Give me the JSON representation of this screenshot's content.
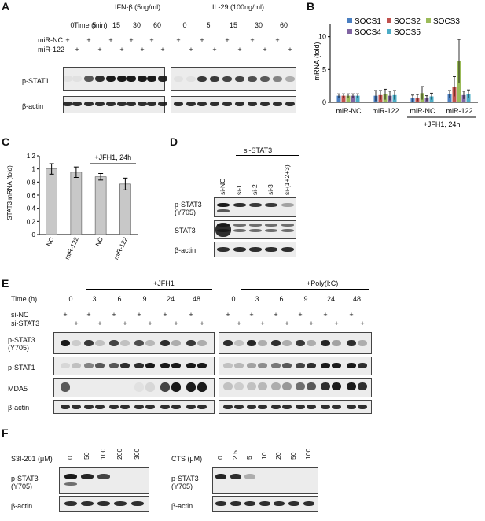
{
  "panels": {
    "A": "A",
    "B": "B",
    "C": "C",
    "D": "D",
    "E": "E",
    "F": "F"
  },
  "panelA": {
    "left_title": "IFN-β (5ng/ml)",
    "right_title": "IL-29 (100ng/ml)",
    "time_label": "Time (min)",
    "times": [
      "0",
      "5",
      "15",
      "30",
      "60"
    ],
    "row1": "miR-NC",
    "row2": "miR-122",
    "plus": "+",
    "blot1": "p-STAT1",
    "blot2": "β-actin"
  },
  "chart_data": [
    {
      "panel": "B",
      "type": "bar",
      "ylabel": "mRNA (fold)",
      "ylim": [
        0,
        12
      ],
      "yticks": [
        "0",
        "5",
        "10"
      ],
      "categories": [
        "miR-NC",
        "miR-122",
        "miR-NC",
        "miR-122"
      ],
      "group_note": "+JFH1, 24h",
      "series": [
        {
          "name": "SOCS1",
          "color": "#4a7fc1",
          "values": [
            1.0,
            1.0,
            0.6,
            1.2
          ],
          "errors": [
            0.3,
            0.8,
            0.5,
            0.6
          ]
        },
        {
          "name": "SOCS2",
          "color": "#c0504d",
          "values": [
            1.0,
            1.1,
            0.7,
            2.4
          ],
          "errors": [
            0.3,
            0.7,
            0.5,
            1.5
          ]
        },
        {
          "name": "SOCS3",
          "color": "#9bbb59",
          "values": [
            1.0,
            1.2,
            1.4,
            6.3
          ],
          "errors": [
            0.3,
            0.8,
            1.0,
            3.3
          ]
        },
        {
          "name": "SOCS4",
          "color": "#8064a2",
          "values": [
            1.0,
            1.0,
            0.6,
            1.1
          ],
          "errors": [
            0.3,
            0.7,
            0.4,
            0.6
          ]
        },
        {
          "name": "SOCS5",
          "color": "#4bacc6",
          "values": [
            1.0,
            1.1,
            0.9,
            1.3
          ],
          "errors": [
            0.3,
            0.7,
            0.5,
            0.6
          ]
        }
      ]
    },
    {
      "panel": "C",
      "type": "bar",
      "ylabel": "STAT3 mRNA (fold)",
      "ylim": [
        0,
        1.2
      ],
      "yticks": [
        "0",
        "0.2",
        "0.4",
        "0.6",
        "0.8",
        "1",
        "1.2"
      ],
      "categories": [
        "NC",
        "miR-122",
        "NC",
        "miR-122"
      ],
      "group_note": "+JFH1, 24h",
      "series": [
        {
          "color": "#c8c8c8",
          "values": [
            1.0,
            0.95,
            0.88,
            0.77
          ],
          "errors": [
            0.08,
            0.08,
            0.05,
            0.09
          ]
        }
      ]
    }
  ],
  "panelD": {
    "group": "si-STAT3",
    "lanes": [
      "si-NC",
      "si-1",
      "si-2",
      "si-3",
      "si-(1+2+3)"
    ],
    "blot1a": "p-STAT3",
    "blot1b": "(Y705)",
    "blot2": "STAT3",
    "blot3": "β-actin"
  },
  "panelE": {
    "left_title": "+JFH1",
    "right_title": "+Poly(I:C)",
    "time_label": "Time (h)",
    "times": [
      "0",
      "3",
      "6",
      "9",
      "24",
      "48"
    ],
    "row1": "si-NC",
    "row2": "si-STAT3",
    "plus": "+",
    "blot1a": "p-STAT3",
    "blot1b": "(Y705)",
    "blot2": "p-STAT1",
    "blot3": "MDA5",
    "blot4": "β-actin"
  },
  "panelF": {
    "left_label": "S3I-201 (μM)",
    "left_doses": [
      "0",
      "50",
      "100",
      "200",
      "300"
    ],
    "right_label": "CTS (μM)",
    "right_doses": [
      "0",
      "2.5",
      "5",
      "10",
      "20",
      "50",
      "100"
    ],
    "blot1a": "p-STAT3",
    "blot1b": "(Y705)",
    "blot2": "β-actin"
  }
}
